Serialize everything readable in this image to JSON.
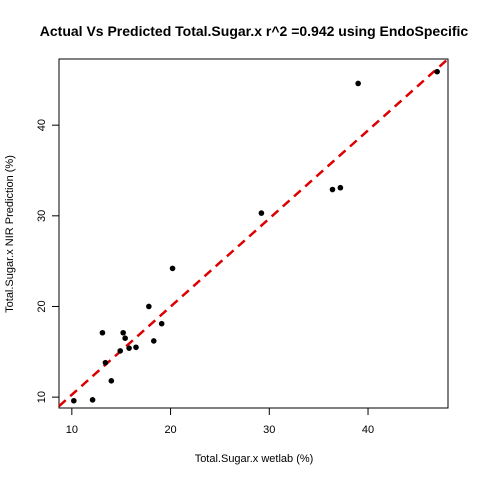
{
  "chart_data": {
    "type": "scatter",
    "title": "Actual Vs Predicted Total.Sugar.x r^2 =0.942 using EndoSpecific",
    "xlabel": "Total.Sugar.x wetlab (%)",
    "ylabel": "Total.Sugar.x NIR Prediction (%)",
    "xlim": [
      8.7,
      48.1
    ],
    "ylim": [
      8.8,
      47.3
    ],
    "xticks": [
      10,
      20,
      30,
      40
    ],
    "yticks": [
      10,
      20,
      30,
      40
    ],
    "point_color": "#000000",
    "points": [
      {
        "x": 10.2,
        "y": 9.6
      },
      {
        "x": 12.1,
        "y": 9.7
      },
      {
        "x": 13.1,
        "y": 17.1
      },
      {
        "x": 13.4,
        "y": 13.8
      },
      {
        "x": 14.0,
        "y": 11.8
      },
      {
        "x": 14.9,
        "y": 15.1
      },
      {
        "x": 15.2,
        "y": 17.1
      },
      {
        "x": 15.4,
        "y": 16.5
      },
      {
        "x": 15.8,
        "y": 15.4
      },
      {
        "x": 16.5,
        "y": 15.5
      },
      {
        "x": 17.8,
        "y": 20.0
      },
      {
        "x": 18.3,
        "y": 16.2
      },
      {
        "x": 19.1,
        "y": 18.1
      },
      {
        "x": 20.2,
        "y": 24.2
      },
      {
        "x": 29.2,
        "y": 30.3
      },
      {
        "x": 36.4,
        "y": 32.9
      },
      {
        "x": 37.2,
        "y": 33.1
      },
      {
        "x": 39.0,
        "y": 44.6
      },
      {
        "x": 47.0,
        "y": 45.9
      }
    ],
    "fit_line": {
      "x": [
        8.7,
        48.1
      ],
      "y": [
        9.0,
        47.3
      ],
      "color": "#dd0000",
      "style": "dashed"
    }
  }
}
